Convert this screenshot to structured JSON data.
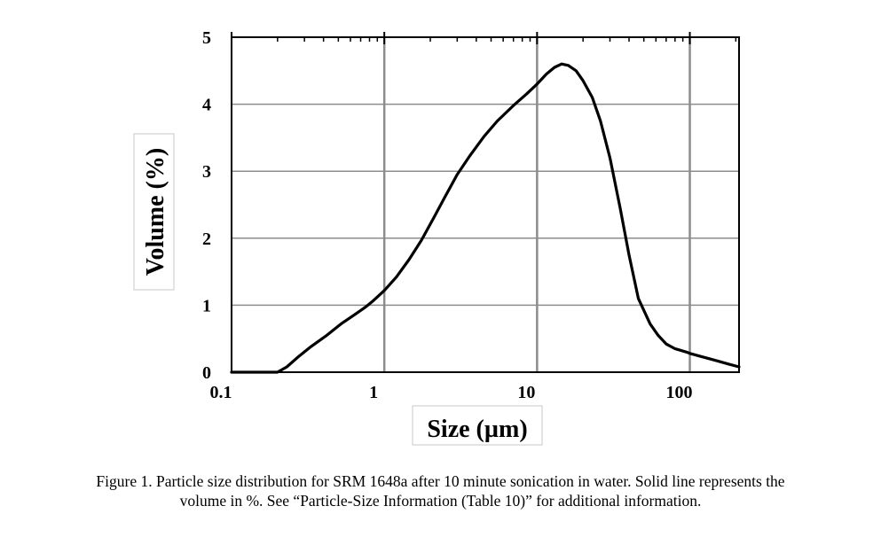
{
  "chart_data": {
    "type": "line",
    "xlabel": "Size (µm)",
    "ylabel": "Volume (%)",
    "xscale": "log",
    "xlim": [
      0.1,
      210
    ],
    "ylim": [
      0,
      5
    ],
    "xticks": [
      0.1,
      1,
      10,
      100
    ],
    "xtick_labels": [
      "0.1",
      "1",
      "10",
      "100"
    ],
    "yticks": [
      0,
      1,
      2,
      3,
      4,
      5
    ],
    "ytick_labels": [
      "0",
      "1",
      "2",
      "3",
      "4",
      "5"
    ],
    "grid": true,
    "series": [
      {
        "x": [
          0.1,
          0.2,
          0.23,
          0.27,
          0.33,
          0.42,
          0.52,
          0.65,
          0.75,
          0.85,
          1.0,
          1.2,
          1.45,
          1.75,
          2.1,
          2.5,
          3.0,
          3.6,
          4.5,
          5.5,
          7.0,
          8.5,
          10.0,
          11.5,
          13.0,
          14.5,
          16.0,
          18.0,
          20.0,
          23.0,
          26.0,
          30.0,
          35.0,
          40.0,
          46.0,
          55.0,
          62.0,
          70.0,
          80.0,
          95.0,
          100.0,
          120.0,
          150.0,
          180.0,
          210.0
        ],
        "y": [
          0,
          0,
          0.08,
          0.22,
          0.38,
          0.55,
          0.72,
          0.87,
          0.97,
          1.07,
          1.22,
          1.42,
          1.68,
          1.97,
          2.3,
          2.62,
          2.95,
          3.22,
          3.52,
          3.75,
          3.98,
          4.15,
          4.3,
          4.45,
          4.55,
          4.6,
          4.58,
          4.5,
          4.35,
          4.1,
          3.75,
          3.2,
          2.45,
          1.75,
          1.1,
          0.72,
          0.55,
          0.42,
          0.35,
          0.3,
          0.28,
          0.23,
          0.17,
          0.12,
          0.08
        ]
      }
    ]
  },
  "caption": {
    "line1": "Figure 1.  Particle size distribution for SRM 1648a after 10 minute sonication in water.  Solid line represents the",
    "line2": "volume in %.  See “Particle-Size Information (Table 10)” for additional information."
  }
}
